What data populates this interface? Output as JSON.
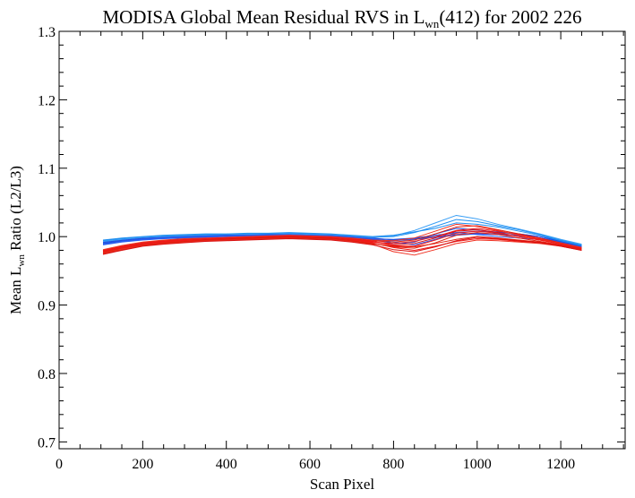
{
  "chart_data": {
    "type": "line",
    "title_parts": {
      "pre": "MODISA Global Mean Residual RVS in L",
      "sub": "wn",
      "post": "(412) for 2002 226"
    },
    "xlabel": "Scan Pixel",
    "ylabel_parts": {
      "pre": "Mean L",
      "sub": "wn",
      "post": " Ratio (L2/L3)"
    },
    "xlim": [
      0,
      1354
    ],
    "ylim": [
      0.69,
      1.3
    ],
    "x_ticks": [
      0,
      200,
      400,
      600,
      800,
      1000,
      1200
    ],
    "x_tick_labels": [
      "0",
      "200",
      "400",
      "600",
      "800",
      "1000",
      "1200"
    ],
    "y_ticks": [
      0.7,
      0.8,
      0.9,
      1.0,
      1.1,
      1.2,
      1.3
    ],
    "y_tick_labels": [
      "0.7",
      "0.8",
      "0.9",
      "1.0",
      "1.1",
      "1.2",
      "1.3"
    ],
    "x": [
      105,
      150,
      200,
      250,
      300,
      350,
      400,
      450,
      500,
      550,
      600,
      650,
      700,
      750,
      800,
      850,
      900,
      950,
      1000,
      1050,
      1100,
      1150,
      1200,
      1250
    ],
    "series": [
      {
        "group": "blue",
        "color": "#1f4fe0",
        "values": [
          0.99,
          0.993,
          0.996,
          0.998,
          0.999,
          1.0,
          1.001,
          1.002,
          1.002,
          1.003,
          1.002,
          1.001,
          0.999,
          0.997,
          0.996,
          0.998,
          1.002,
          1.006,
          1.008,
          1.007,
          1.004,
          1.0,
          0.994,
          0.987
        ]
      },
      {
        "group": "blue",
        "color": "#1f4fe0",
        "values": [
          0.992,
          0.995,
          0.998,
          0.999,
          1.0,
          1.001,
          1.002,
          1.003,
          1.003,
          1.004,
          1.003,
          1.002,
          1.0,
          0.998,
          0.995,
          0.997,
          1.0,
          1.003,
          1.005,
          1.004,
          1.002,
          0.998,
          0.993,
          0.986
        ]
      },
      {
        "group": "blue",
        "color": "#2a5ff0",
        "values": [
          0.988,
          0.992,
          0.995,
          0.997,
          0.998,
          0.999,
          1.0,
          1.001,
          1.001,
          1.002,
          1.001,
          1.0,
          0.998,
          0.996,
          0.994,
          0.996,
          0.999,
          1.002,
          1.004,
          1.003,
          1.001,
          0.998,
          0.992,
          0.985
        ]
      },
      {
        "group": "blue",
        "color": "#1f8ff0",
        "values": [
          0.994,
          0.997,
          0.999,
          1.001,
          1.002,
          1.003,
          1.003,
          1.004,
          1.004,
          1.005,
          1.004,
          1.003,
          1.001,
          0.999,
          1.0,
          1.006,
          1.015,
          1.025,
          1.022,
          1.016,
          1.01,
          1.003,
          0.995,
          0.988
        ]
      },
      {
        "group": "blue",
        "color": "#3a9ff5",
        "values": [
          0.993,
          0.996,
          0.999,
          1.0,
          1.001,
          1.002,
          1.003,
          1.003,
          1.004,
          1.004,
          1.003,
          1.003,
          1.001,
          0.999,
          1.001,
          1.009,
          1.02,
          1.031,
          1.026,
          1.018,
          1.011,
          1.004,
          0.996,
          0.989
        ]
      },
      {
        "group": "blue",
        "color": "#1f4fe0",
        "values": [
          0.991,
          0.994,
          0.997,
          0.999,
          1.0,
          1.001,
          1.002,
          1.002,
          1.003,
          1.003,
          1.002,
          1.001,
          0.999,
          0.996,
          0.99,
          0.992,
          1.004,
          1.012,
          1.01,
          1.006,
          1.004,
          1.0,
          0.993,
          0.986
        ]
      },
      {
        "group": "blue",
        "color": "#2a5ff0",
        "values": [
          0.989,
          0.993,
          0.996,
          0.998,
          0.999,
          1.0,
          1.001,
          1.002,
          1.002,
          1.003,
          1.002,
          1.001,
          0.999,
          0.997,
          0.992,
          0.988,
          0.996,
          1.006,
          1.003,
          1.0,
          0.998,
          0.996,
          0.991,
          0.985
        ]
      },
      {
        "group": "blue",
        "color": "#1f8ff0",
        "values": [
          0.995,
          0.998,
          1.0,
          1.002,
          1.003,
          1.004,
          1.004,
          1.005,
          1.005,
          1.006,
          1.005,
          1.004,
          1.002,
          1.0,
          1.002,
          1.007,
          1.012,
          1.02,
          1.018,
          1.014,
          1.008,
          1.002,
          0.994,
          0.987
        ]
      },
      {
        "group": "red",
        "color": "#e02010",
        "values": [
          0.975,
          0.981,
          0.987,
          0.99,
          0.992,
          0.994,
          0.995,
          0.996,
          0.997,
          0.998,
          0.997,
          0.996,
          0.993,
          0.99,
          0.986,
          0.985,
          0.99,
          0.996,
          1.0,
          0.998,
          0.995,
          0.992,
          0.988,
          0.982
        ]
      },
      {
        "group": "red",
        "color": "#f01818",
        "values": [
          0.977,
          0.983,
          0.988,
          0.991,
          0.993,
          0.995,
          0.996,
          0.997,
          0.998,
          0.999,
          0.998,
          0.997,
          0.994,
          0.991,
          0.984,
          0.98,
          0.986,
          0.993,
          0.997,
          0.996,
          0.993,
          0.991,
          0.987,
          0.981
        ]
      },
      {
        "group": "red",
        "color": "#d81010",
        "values": [
          0.979,
          0.985,
          0.99,
          0.993,
          0.995,
          0.996,
          0.997,
          0.998,
          0.999,
          1.0,
          0.999,
          0.998,
          0.996,
          0.993,
          0.988,
          0.99,
          0.998,
          1.008,
          1.01,
          1.006,
          1.0,
          0.995,
          0.99,
          0.983
        ]
      },
      {
        "group": "red",
        "color": "#f03020",
        "values": [
          0.976,
          0.982,
          0.987,
          0.99,
          0.992,
          0.994,
          0.995,
          0.996,
          0.997,
          0.998,
          0.998,
          0.996,
          0.993,
          0.989,
          0.978,
          0.973,
          0.981,
          0.99,
          0.995,
          0.994,
          0.992,
          0.99,
          0.986,
          0.98
        ]
      },
      {
        "group": "red",
        "color": "#e02010",
        "values": [
          0.98,
          0.986,
          0.991,
          0.994,
          0.996,
          0.997,
          0.998,
          0.999,
          1.0,
          1.001,
          1.0,
          0.999,
          0.997,
          0.994,
          0.992,
          0.995,
          1.004,
          1.014,
          1.016,
          1.01,
          1.004,
          0.998,
          0.991,
          0.984
        ]
      },
      {
        "group": "red",
        "color": "#f01818",
        "values": [
          0.978,
          0.984,
          0.989,
          0.992,
          0.994,
          0.995,
          0.996,
          0.997,
          0.998,
          0.999,
          0.998,
          0.997,
          0.995,
          0.992,
          0.99,
          0.993,
          1.0,
          1.009,
          1.012,
          1.008,
          1.003,
          0.997,
          0.99,
          0.983
        ]
      },
      {
        "group": "red",
        "color": "#d81010",
        "values": [
          0.974,
          0.98,
          0.986,
          0.989,
          0.991,
          0.993,
          0.994,
          0.995,
          0.996,
          0.997,
          0.996,
          0.995,
          0.992,
          0.988,
          0.981,
          0.978,
          0.985,
          0.994,
          0.999,
          0.997,
          0.994,
          0.991,
          0.986,
          0.98
        ]
      },
      {
        "group": "red",
        "color": "#f03020",
        "values": [
          0.981,
          0.987,
          0.992,
          0.995,
          0.997,
          0.998,
          0.999,
          1.0,
          1.001,
          1.002,
          1.001,
          1.0,
          0.998,
          0.995,
          0.994,
          0.998,
          1.008,
          1.018,
          1.015,
          1.009,
          1.002,
          0.996,
          0.99,
          0.984
        ]
      },
      {
        "group": "red",
        "color": "#e02010",
        "values": [
          0.977,
          0.983,
          0.988,
          0.991,
          0.993,
          0.995,
          0.996,
          0.997,
          0.998,
          0.999,
          0.998,
          0.997,
          0.994,
          0.99,
          0.985,
          0.983,
          0.991,
          1.002,
          1.006,
          1.003,
          0.998,
          0.993,
          0.988,
          0.982
        ]
      },
      {
        "group": "red",
        "color": "#f01818",
        "values": [
          0.979,
          0.985,
          0.99,
          0.993,
          0.995,
          0.997,
          0.998,
          0.999,
          1.0,
          1.001,
          1.0,
          0.999,
          0.996,
          0.993,
          0.987,
          0.986,
          0.995,
          1.005,
          1.008,
          1.005,
          1.0,
          0.995,
          0.989,
          0.983
        ]
      }
    ]
  }
}
